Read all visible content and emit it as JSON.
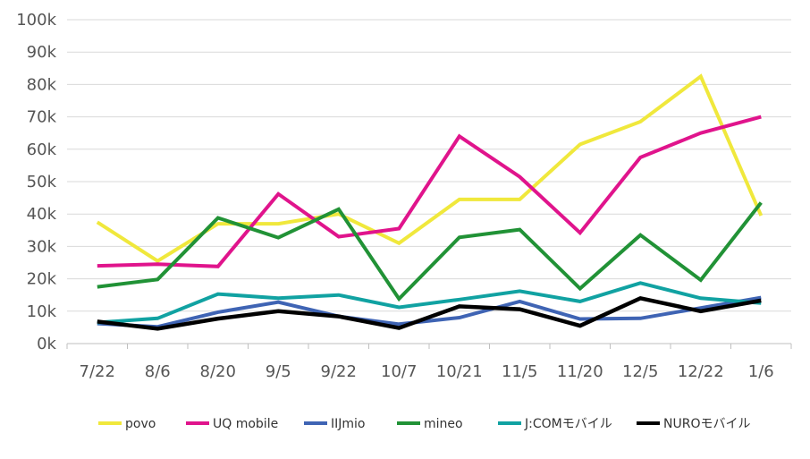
{
  "chart_data": {
    "type": "line",
    "categories": [
      "7/22",
      "8/6",
      "8/20",
      "9/5",
      "9/22",
      "10/7",
      "10/21",
      "11/5",
      "11/20",
      "12/5",
      "12/22",
      "1/6"
    ],
    "ylim": [
      0,
      100000
    ],
    "yticks": [
      "0k",
      "10k",
      "20k",
      "30k",
      "40k",
      "50k",
      "60k",
      "70k",
      "80k",
      "90k",
      "100k"
    ],
    "grid": true,
    "legend_position": "bottom",
    "series": [
      {
        "name": "povo",
        "color": "#f0e83c",
        "values": [
          37500,
          25500,
          37000,
          37000,
          40000,
          31000,
          44500,
          44500,
          61500,
          68500,
          82500,
          39500
        ]
      },
      {
        "name": "UQ mobile",
        "color": "#e0148c",
        "values": [
          24000,
          24500,
          23800,
          46200,
          33000,
          35500,
          64000,
          51500,
          34200,
          57500,
          65000,
          70000
        ]
      },
      {
        "name": "IIJmio",
        "color": "#3f64b4",
        "values": [
          6200,
          5200,
          9700,
          12800,
          8400,
          6000,
          8000,
          13000,
          7600,
          7800,
          11000,
          14200
        ]
      },
      {
        "name": "mineo",
        "color": "#219236",
        "values": [
          17500,
          19800,
          38800,
          32700,
          41500,
          13800,
          32800,
          35200,
          17000,
          33500,
          19600,
          43500
        ]
      },
      {
        "name": "J:COMモバイル",
        "color": "#11a2a2",
        "values": [
          6500,
          7800,
          15300,
          14000,
          15000,
          11200,
          13600,
          16200,
          13000,
          18700,
          14000,
          12500
        ]
      },
      {
        "name": "NUROモバイル",
        "color": "#000000",
        "values": [
          6800,
          4600,
          7700,
          10000,
          8400,
          4800,
          11500,
          10600,
          5500,
          14000,
          10000,
          13300
        ]
      }
    ]
  }
}
